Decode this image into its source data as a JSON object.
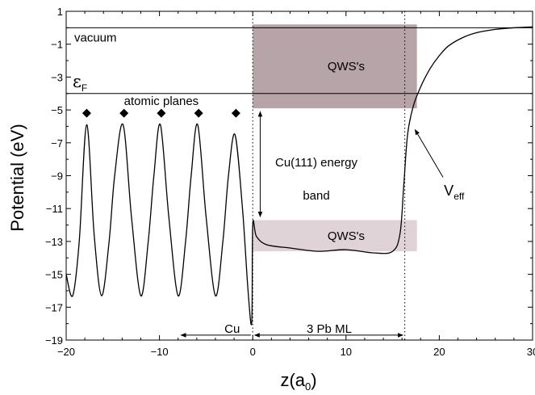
{
  "chart_data": {
    "type": "line",
    "xlabel": {
      "main": "z(a",
      "sub": "0",
      "close": ")"
    },
    "ylabel": "Potential (eV)",
    "xlim": [
      -20,
      30
    ],
    "ylim": [
      -19,
      1
    ],
    "x_ticks": [
      -20,
      -10,
      0,
      10,
      20,
      30
    ],
    "x_tick_labels": [
      "−20",
      "−10",
      "0",
      "10",
      "20",
      "30"
    ],
    "y_ticks": [
      1,
      -1,
      -3,
      -5,
      -7,
      -9,
      -11,
      -13,
      -15,
      -17,
      -19
    ],
    "y_tick_labels": [
      "1",
      "−1",
      "−3",
      "−5",
      "−7",
      "−9",
      "−11",
      "−13",
      "−15",
      "−17",
      "−19"
    ],
    "grid": false,
    "series": [
      {
        "color": "#000000",
        "points": [
          [
            -20,
            -15.0
          ],
          [
            -19.3,
            -16.3
          ],
          [
            -18.6,
            -13.0
          ],
          [
            -17.8,
            -5.9
          ],
          [
            -17.0,
            -12.6
          ],
          [
            -16.2,
            -16.3
          ],
          [
            -15.4,
            -13.0
          ],
          [
            -14.8,
            -9.0
          ],
          [
            -13.9,
            -5.9
          ],
          [
            -13.0,
            -11.5
          ],
          [
            -12.0,
            -16.3
          ],
          [
            -11.2,
            -13.0
          ],
          [
            -10.6,
            -9.0
          ],
          [
            -9.9,
            -5.9
          ],
          [
            -9.0,
            -11.5
          ],
          [
            -8.0,
            -16.3
          ],
          [
            -7.2,
            -13.0
          ],
          [
            -6.6,
            -9.0
          ],
          [
            -5.9,
            -5.9
          ],
          [
            -5.0,
            -11.5
          ],
          [
            -4.0,
            -16.3
          ],
          [
            -3.2,
            -13.0
          ],
          [
            -2.6,
            -9.0
          ],
          [
            -1.9,
            -6.5
          ],
          [
            -1.1,
            -11.0
          ],
          [
            -0.5,
            -16.0
          ],
          [
            -0.1,
            -17.9
          ],
          [
            0.0,
            -12.0
          ],
          [
            0.4,
            -12.7
          ],
          [
            1.5,
            -13.2
          ],
          [
            4.0,
            -13.4
          ],
          [
            7.0,
            -13.6
          ],
          [
            10.0,
            -13.5
          ],
          [
            13.0,
            -13.7
          ],
          [
            15.0,
            -13.6
          ],
          [
            15.8,
            -12.5
          ],
          [
            16.2,
            -9.5
          ],
          [
            16.6,
            -6.5
          ],
          [
            17.2,
            -4.8
          ],
          [
            18.0,
            -3.6
          ],
          [
            19.0,
            -2.5
          ],
          [
            20.0,
            -1.7
          ],
          [
            21.0,
            -1.1
          ],
          [
            22.5,
            -0.6
          ],
          [
            24.0,
            -0.3
          ],
          [
            26.0,
            -0.1
          ],
          [
            28.0,
            0.0
          ],
          [
            30.0,
            0.05
          ]
        ]
      }
    ],
    "reference_lines": [
      {
        "name": "vacuum",
        "label": "vacuum",
        "y": 0
      },
      {
        "name": "fermi",
        "label": "ε",
        "sub": "F",
        "y": -4.0
      }
    ],
    "vertical_lines": [
      0,
      16.3
    ],
    "regions": [
      {
        "label": "QWS's",
        "x": [
          0,
          17.6
        ],
        "y": [
          -4.9,
          0.2
        ],
        "color": "#b7a4a8"
      },
      {
        "label": "QWS's",
        "x": [
          0,
          17.6
        ],
        "y": [
          -13.6,
          -11.7
        ],
        "color": "#dfd3d7"
      }
    ],
    "atomic_planes": {
      "label": "atomic planes",
      "x": [
        -17.8,
        -13.8,
        -9.8,
        -5.8,
        -1.8
      ],
      "y": -5.2
    },
    "annotations": {
      "band_line1": "Cu(111) energy",
      "band_line2": "band",
      "band_arrow_x": 0.8,
      "band_arrow_y": [
        -5.1,
        -11.5
      ],
      "veff_main": "V",
      "veff_sub": "eff",
      "veff_label_at": [
        20.5,
        -10.2
      ],
      "veff_arrow_from": [
        20.4,
        -9.1
      ],
      "veff_arrow_to": [
        17.4,
        -6.2
      ],
      "cu_label": "Cu",
      "cu_label_at": [
        -2.2,
        -18.3
      ],
      "cu_arrow_x": [
        -7.7,
        -0.2
      ],
      "pb_label": "3 Pb ML",
      "pb_label_at": [
        8.2,
        -18.3
      ],
      "pb_arrow_x": [
        0.2,
        16.1
      ],
      "arrow_y": -18.7
    }
  }
}
